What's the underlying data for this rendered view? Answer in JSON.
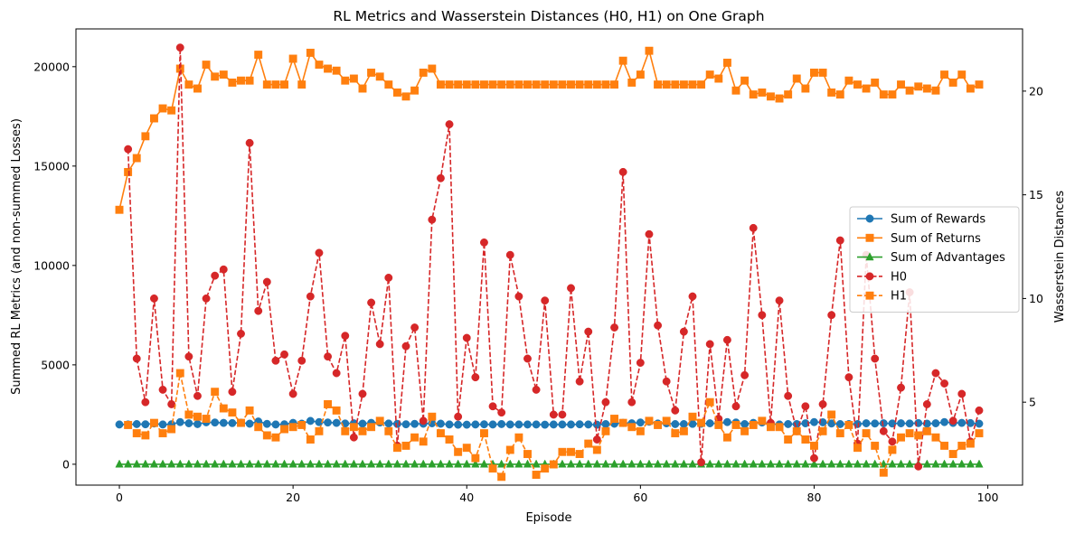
{
  "chart_data": {
    "type": "line",
    "title": "RL Metrics and Wasserstein Distances (H0, H1) on One Graph",
    "xlabel": "Episode",
    "ylabel_left": "Summed RL Metrics (and non-summed Losses)",
    "ylabel_right": "Wasserstein Distances",
    "xlim": [
      -5,
      104
    ],
    "ylim_left": [
      -1050,
      21900
    ],
    "ylim_right": [
      1.0,
      23.0
    ],
    "x_ticks": [
      0,
      20,
      40,
      60,
      80,
      100
    ],
    "y_ticks_left": [
      0,
      5000,
      10000,
      15000,
      20000
    ],
    "y_ticks_right": [
      5,
      10,
      15,
      20
    ],
    "grid": false,
    "legend_position": "center-right",
    "x": [
      0,
      1,
      2,
      3,
      4,
      5,
      6,
      7,
      8,
      9,
      10,
      11,
      12,
      13,
      14,
      15,
      16,
      17,
      18,
      19,
      20,
      21,
      22,
      23,
      24,
      25,
      26,
      27,
      28,
      29,
      30,
      31,
      32,
      33,
      34,
      35,
      36,
      37,
      38,
      39,
      40,
      41,
      42,
      43,
      44,
      45,
      46,
      47,
      48,
      49,
      50,
      51,
      52,
      53,
      54,
      55,
      56,
      57,
      58,
      59,
      60,
      61,
      62,
      63,
      64,
      65,
      66,
      67,
      68,
      69,
      70,
      71,
      72,
      73,
      74,
      75,
      76,
      77,
      78,
      79,
      80,
      81,
      82,
      83,
      84,
      85,
      86,
      87,
      88,
      89,
      90,
      91,
      92,
      93,
      94,
      95,
      96,
      97,
      98,
      99
    ],
    "series": [
      {
        "name": "Sum of Rewards",
        "axis": "left",
        "color": "#1f77b4",
        "marker": "circle",
        "linestyle": "solid",
        "values": [
          2000,
          2000,
          2020,
          2010,
          2050,
          2000,
          2010,
          2120,
          2060,
          2020,
          2110,
          2100,
          2080,
          2070,
          2090,
          2040,
          2150,
          2030,
          2000,
          2010,
          2080,
          2040,
          2180,
          2120,
          2100,
          2080,
          2050,
          2060,
          2040,
          2080,
          2100,
          2050,
          2030,
          2010,
          2030,
          2040,
          2060,
          2040,
          2000,
          1990,
          1990,
          2000,
          2010,
          2000,
          2020,
          2000,
          2000,
          2000,
          2000,
          1990,
          2000,
          2000,
          2000,
          2010,
          2000,
          1990,
          2020,
          2040,
          2080,
          2060,
          2100,
          2140,
          2050,
          2060,
          2020,
          2020,
          2030,
          2040,
          2060,
          2050,
          2120,
          2100,
          2020,
          2080,
          2100,
          2030,
          2000,
          2020,
          2020,
          2060,
          2120,
          2110,
          2050,
          2020,
          2020,
          2020,
          2060,
          2050,
          2060,
          2050,
          2060,
          2050,
          2070,
          2040,
          2060,
          2120,
          2080,
          2080,
          2070,
          2040
        ]
      },
      {
        "name": "Sum of Returns",
        "axis": "left",
        "color": "#ff7f0e",
        "marker": "square",
        "linestyle": "solid",
        "values": [
          12800,
          14700,
          15400,
          16500,
          17400,
          17900,
          17800,
          19900,
          19100,
          18900,
          20100,
          19500,
          19600,
          19200,
          19300,
          19300,
          20600,
          19100,
          19100,
          19100,
          20400,
          19100,
          20700,
          20100,
          19900,
          19800,
          19300,
          19400,
          18900,
          19700,
          19500,
          19100,
          18700,
          18500,
          18800,
          19700,
          19900,
          19100,
          19100,
          19100,
          19100,
          19100,
          19100,
          19100,
          19100,
          19100,
          19100,
          19100,
          19100,
          19100,
          19100,
          19100,
          19100,
          19100,
          19100,
          19100,
          19100,
          19100,
          20300,
          19200,
          19600,
          20800,
          19100,
          19100,
          19100,
          19100,
          19100,
          19100,
          19600,
          19400,
          20200,
          18800,
          19300,
          18600,
          18700,
          18500,
          18400,
          18600,
          19400,
          18900,
          19700,
          19700,
          18700,
          18600,
          19300,
          19100,
          18900,
          19200,
          18600,
          18600,
          19100,
          18800,
          19000,
          18900,
          18800,
          19600,
          19200,
          19600,
          18900,
          19100
        ]
      },
      {
        "name": "Sum of Advantages",
        "axis": "left",
        "color": "#2ca02c",
        "marker": "triangle",
        "linestyle": "solid",
        "values": [
          0,
          0,
          0,
          0,
          0,
          0,
          0,
          0,
          0,
          0,
          0,
          0,
          0,
          0,
          0,
          0,
          0,
          0,
          0,
          0,
          0,
          0,
          0,
          0,
          0,
          0,
          0,
          0,
          0,
          0,
          0,
          0,
          0,
          0,
          0,
          0,
          0,
          0,
          0,
          0,
          0,
          0,
          0,
          0,
          0,
          0,
          0,
          0,
          0,
          0,
          0,
          0,
          0,
          0,
          0,
          0,
          0,
          0,
          0,
          0,
          0,
          0,
          0,
          0,
          0,
          0,
          0,
          0,
          0,
          0,
          0,
          0,
          0,
          0,
          0,
          0,
          0,
          0,
          0,
          0,
          0,
          0,
          0,
          0,
          0,
          0,
          0,
          0,
          0,
          0,
          0,
          0,
          0,
          0,
          0,
          0,
          0,
          0,
          0,
          0
        ]
      },
      {
        "name": "H0",
        "axis": "right",
        "color": "#d62728",
        "marker": "circle",
        "linestyle": "dashed",
        "values": [
          null,
          17.2,
          7.1,
          5.0,
          10.0,
          5.6,
          4.9,
          22.1,
          7.2,
          5.3,
          10.0,
          11.1,
          11.4,
          5.5,
          8.3,
          17.5,
          9.4,
          10.8,
          7.0,
          7.3,
          5.4,
          7.0,
          10.1,
          12.2,
          7.2,
          6.4,
          8.2,
          3.3,
          5.4,
          9.8,
          7.8,
          11.0,
          2.9,
          7.7,
          8.6,
          4.1,
          13.8,
          15.8,
          18.4,
          4.3,
          8.1,
          6.2,
          12.7,
          4.8,
          4.5,
          12.1,
          10.1,
          7.1,
          5.6,
          9.9,
          4.4,
          4.4,
          10.5,
          6.0,
          8.4,
          3.2,
          5.0,
          8.6,
          16.1,
          5.0,
          6.9,
          13.1,
          8.7,
          6.0,
          4.6,
          8.4,
          10.1,
          2.1,
          7.8,
          4.2,
          8.0,
          4.8,
          6.3,
          13.4,
          9.2,
          4.0,
          9.9,
          5.3,
          3.6,
          4.8,
          2.3,
          4.9,
          9.2,
          12.8,
          6.2,
          3.0,
          12.1,
          7.1,
          3.6,
          3.1,
          5.7,
          10.3,
          1.9,
          4.9,
          6.4,
          5.9,
          4.1,
          5.4,
          3.1,
          4.6
        ]
      },
      {
        "name": "H1",
        "axis": "right",
        "color": "#ff7f0e",
        "marker": "square",
        "linestyle": "dashed",
        "values": [
          null,
          3.9,
          3.5,
          3.4,
          4.0,
          3.5,
          3.7,
          6.4,
          4.4,
          4.3,
          4.2,
          5.5,
          4.7,
          4.5,
          4.0,
          4.6,
          3.8,
          3.4,
          3.3,
          3.7,
          3.8,
          3.9,
          3.2,
          3.6,
          4.9,
          4.6,
          3.6,
          3.8,
          3.6,
          3.8,
          4.1,
          3.6,
          2.8,
          2.9,
          3.3,
          3.1,
          4.3,
          3.5,
          3.2,
          2.6,
          2.8,
          2.3,
          3.5,
          1.8,
          1.4,
          2.7,
          3.3,
          2.5,
          1.5,
          1.8,
          2.0,
          2.6,
          2.6,
          2.5,
          3.0,
          2.7,
          3.6,
          4.2,
          4.0,
          3.8,
          3.6,
          4.1,
          3.9,
          4.1,
          3.5,
          3.6,
          4.3,
          4.0,
          5.0,
          3.9,
          3.3,
          3.9,
          3.6,
          3.9,
          4.1,
          3.8,
          3.8,
          3.2,
          3.6,
          3.2,
          2.9,
          3.6,
          4.4,
          3.5,
          3.9,
          2.8,
          3.5,
          2.9,
          1.6,
          2.7,
          3.3,
          3.5,
          3.4,
          3.6,
          3.3,
          2.9,
          2.5,
          2.9,
          3.0,
          3.5
        ]
      }
    ],
    "legend": [
      "Sum of Rewards",
      "Sum of Returns",
      "Sum of Advantages",
      "H0",
      "H1"
    ]
  }
}
